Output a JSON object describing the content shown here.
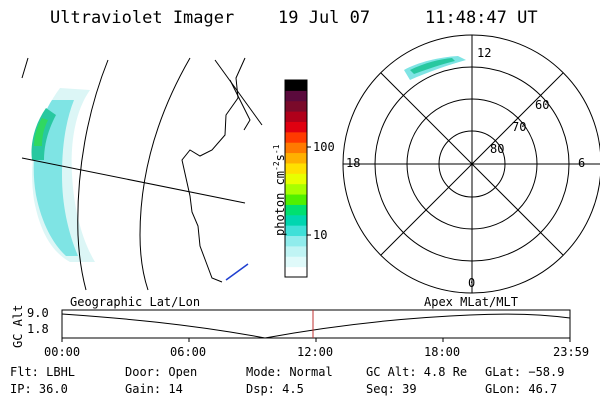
{
  "header": {
    "title": "Ultraviolet Imager",
    "date": "19 Jul 07",
    "time": "11:48:47 UT"
  },
  "colorbar": {
    "label": "photon cm",
    "label_sup1": "-2",
    "label_s": "s",
    "label_sup2": "-1",
    "ticks": [
      "100",
      "10"
    ],
    "colors": [
      "#000000",
      "#5a0a3c",
      "#7a0a2a",
      "#b0001a",
      "#e00010",
      "#ff3a00",
      "#ff7a00",
      "#ffb000",
      "#ffe000",
      "#e8ff00",
      "#a8ff00",
      "#50f000",
      "#00e070",
      "#00d6b0",
      "#40e0d8",
      "#90ecec",
      "#c0f4f4",
      "#e0fafa",
      "#ffffff"
    ]
  },
  "polar": {
    "labels": {
      "top": "12",
      "left": "18",
      "right": "6",
      "bottom": "0"
    },
    "lat_labels": [
      "60",
      "70",
      "80"
    ]
  },
  "altitude_panel": {
    "left_label": "Geographic Lat/Lon",
    "right_label": "Apex MLat/MLT",
    "y_axis_label": "GC Alt",
    "y_ticks": [
      "9.0",
      "1.8"
    ],
    "x_ticks": [
      "00:00",
      "06:00",
      "12:00",
      "18:00",
      "23:59"
    ]
  },
  "status": {
    "filter": "Flt: LBHL",
    "door": "Door: Open",
    "mode": "Mode: Normal",
    "gc_alt": "GC Alt: 4.8 Re",
    "glat": "GLat: −58.9",
    "ip": "IP: 36.0",
    "gain": "Gain: 14",
    "dsp": "Dsp:    4.5",
    "seq": "Seq: 39",
    "glon": "GLon:  46.7"
  }
}
